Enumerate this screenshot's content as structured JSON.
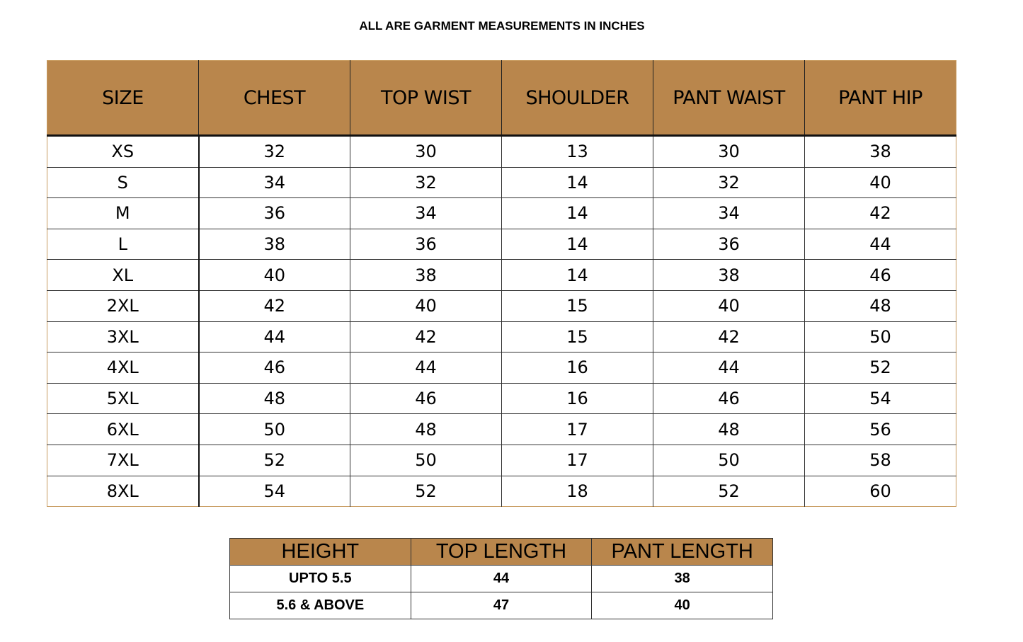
{
  "title": "ALL ARE GARMENT MEASUREMENTS IN INCHES",
  "colors": {
    "header_bg": "#b9864c"
  },
  "size_table": {
    "headers": [
      "SIZE",
      "CHEST",
      "TOP WIST",
      "SHOULDER",
      "PANT WAIST",
      "PANT HIP"
    ],
    "rows": [
      [
        "XS",
        "32",
        "30",
        "13",
        "30",
        "38"
      ],
      [
        "S",
        "34",
        "32",
        "14",
        "32",
        "40"
      ],
      [
        "M",
        "36",
        "34",
        "14",
        "34",
        "42"
      ],
      [
        "L",
        "38",
        "36",
        "14",
        "36",
        "44"
      ],
      [
        "XL",
        "40",
        "38",
        "14",
        "38",
        "46"
      ],
      [
        "2XL",
        "42",
        "40",
        "15",
        "40",
        "48"
      ],
      [
        "3XL",
        "44",
        "42",
        "15",
        "42",
        "50"
      ],
      [
        "4XL",
        "46",
        "44",
        "16",
        "44",
        "52"
      ],
      [
        "5XL",
        "48",
        "46",
        "16",
        "46",
        "54"
      ],
      [
        "6XL",
        "50",
        "48",
        "17",
        "48",
        "56"
      ],
      [
        "7XL",
        "52",
        "50",
        "17",
        "50",
        "58"
      ],
      [
        "8XL",
        "54",
        "52",
        "18",
        "52",
        "60"
      ]
    ]
  },
  "length_table": {
    "headers": [
      "HEIGHT",
      "TOP LENGTH",
      "PANT LENGTH"
    ],
    "rows": [
      [
        "UPTO 5.5",
        "44",
        "38"
      ],
      [
        "5.6 & ABOVE",
        "47",
        "40"
      ]
    ]
  }
}
